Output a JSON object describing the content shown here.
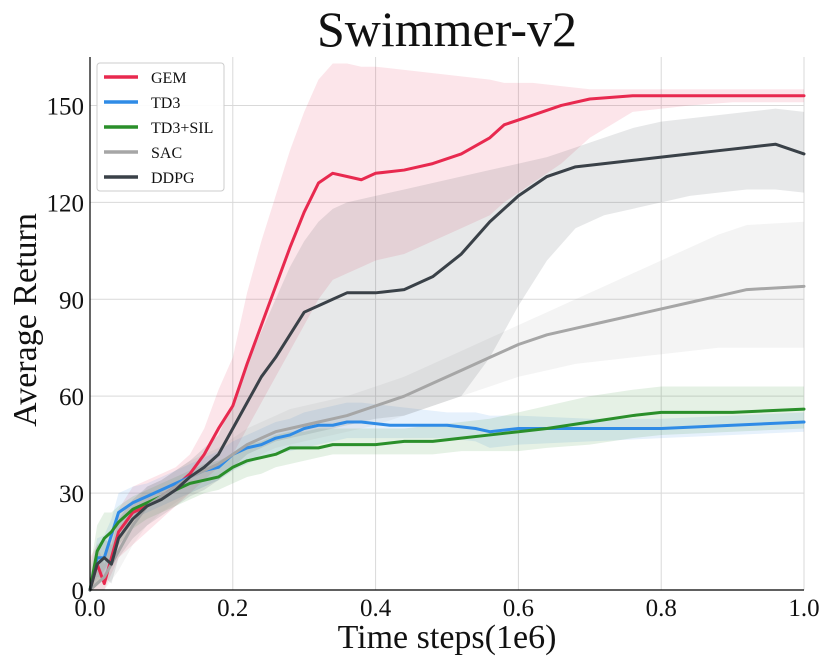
{
  "chart_data": {
    "type": "line",
    "title": "Swimmer-v2",
    "xlabel": "Time steps(1e6)",
    "ylabel": "Average Return",
    "xlim": [
      0,
      1.0
    ],
    "ylim": [
      0,
      165
    ],
    "xticks": [
      "0.0",
      "0.2",
      "0.4",
      "0.6",
      "0.8",
      "1.0"
    ],
    "xtick_values": [
      0,
      0.2,
      0.4,
      0.6,
      0.8,
      1.0
    ],
    "yticks": [
      "0",
      "30",
      "60",
      "90",
      "120",
      "150"
    ],
    "ytick_values": [
      0,
      30,
      60,
      90,
      120,
      150
    ],
    "grid": true,
    "legend_position": "top-left",
    "series": [
      {
        "name": "GEM",
        "color": "#e8294f",
        "x": [
          0,
          0.01,
          0.02,
          0.04,
          0.06,
          0.08,
          0.1,
          0.12,
          0.14,
          0.16,
          0.18,
          0.2,
          0.22,
          0.24,
          0.26,
          0.28,
          0.3,
          0.32,
          0.34,
          0.36,
          0.38,
          0.4,
          0.44,
          0.48,
          0.52,
          0.56,
          0.58,
          0.62,
          0.66,
          0.7,
          0.76,
          0.84,
          0.9,
          1.0
        ],
        "y": [
          0,
          8,
          2,
          18,
          24,
          26,
          29,
          32,
          36,
          42,
          50,
          57,
          70,
          82,
          94,
          106,
          117,
          126,
          129,
          128,
          127,
          129,
          130,
          132,
          135,
          140,
          144,
          147,
          150,
          152,
          153,
          153,
          153,
          153
        ],
        "band": [
          [
            0,
            10
          ],
          [
            0,
            14
          ],
          [
            0,
            8
          ],
          [
            10,
            25
          ],
          [
            14,
            32
          ],
          [
            18,
            34
          ],
          [
            22,
            36
          ],
          [
            26,
            38
          ],
          [
            30,
            42
          ],
          [
            34,
            50
          ],
          [
            38,
            62
          ],
          [
            42,
            72
          ],
          [
            50,
            92
          ],
          [
            58,
            108
          ],
          [
            66,
            122
          ],
          [
            74,
            136
          ],
          [
            82,
            148
          ],
          [
            90,
            158
          ],
          [
            96,
            163
          ],
          [
            98,
            163
          ],
          [
            100,
            162
          ],
          [
            102,
            162
          ],
          [
            104,
            161
          ],
          [
            108,
            160
          ],
          [
            112,
            159
          ],
          [
            116,
            158
          ],
          [
            120,
            157
          ],
          [
            126,
            157
          ],
          [
            132,
            156
          ],
          [
            140,
            155
          ],
          [
            148,
            155
          ],
          [
            150,
            155
          ],
          [
            151,
            155
          ],
          [
            151,
            155
          ]
        ]
      },
      {
        "name": "TD3",
        "color": "#2f8be6",
        "x": [
          0,
          0.01,
          0.02,
          0.03,
          0.04,
          0.06,
          0.08,
          0.1,
          0.12,
          0.14,
          0.16,
          0.18,
          0.2,
          0.22,
          0.24,
          0.26,
          0.28,
          0.3,
          0.32,
          0.34,
          0.36,
          0.38,
          0.42,
          0.46,
          0.5,
          0.54,
          0.56,
          0.6,
          0.7,
          0.8,
          0.9,
          1.0
        ],
        "y": [
          0,
          10,
          10,
          17,
          24,
          27,
          29,
          31,
          33,
          35,
          37,
          38,
          42,
          44,
          45,
          47,
          48,
          50,
          51,
          51,
          52,
          52,
          51,
          51,
          51,
          50,
          49,
          50,
          50,
          50,
          51,
          52
        ],
        "band": [
          [
            0,
            4
          ],
          [
            4,
            16
          ],
          [
            4,
            17
          ],
          [
            10,
            22
          ],
          [
            18,
            30
          ],
          [
            22,
            32
          ],
          [
            24,
            33
          ],
          [
            26,
            35
          ],
          [
            28,
            37
          ],
          [
            30,
            39
          ],
          [
            32,
            41
          ],
          [
            34,
            43
          ],
          [
            37,
            46
          ],
          [
            39,
            48
          ],
          [
            41,
            50
          ],
          [
            42,
            52
          ],
          [
            43,
            53
          ],
          [
            44,
            55
          ],
          [
            45,
            56
          ],
          [
            46,
            57
          ],
          [
            47,
            58
          ],
          [
            47,
            58
          ],
          [
            47,
            57
          ],
          [
            47,
            56
          ],
          [
            47,
            55
          ],
          [
            46,
            55
          ],
          [
            44,
            54
          ],
          [
            45,
            54
          ],
          [
            46,
            53
          ],
          [
            47,
            53
          ],
          [
            48,
            54
          ],
          [
            49,
            55
          ]
        ]
      },
      {
        "name": "TD3+SIL",
        "color": "#2a8f2a",
        "x": [
          0,
          0.01,
          0.02,
          0.03,
          0.04,
          0.06,
          0.08,
          0.1,
          0.12,
          0.14,
          0.16,
          0.18,
          0.2,
          0.22,
          0.24,
          0.26,
          0.28,
          0.3,
          0.32,
          0.34,
          0.36,
          0.4,
          0.44,
          0.48,
          0.52,
          0.56,
          0.6,
          0.64,
          0.7,
          0.76,
          0.8,
          0.9,
          1.0
        ],
        "y": [
          0,
          12,
          16,
          18,
          21,
          25,
          27,
          29,
          31,
          33,
          34,
          35,
          38,
          40,
          41,
          42,
          44,
          44,
          44,
          45,
          45,
          45,
          46,
          46,
          47,
          48,
          49,
          50,
          52,
          54,
          55,
          55,
          56
        ],
        "band": [
          [
            0,
            6
          ],
          [
            2,
            20
          ],
          [
            6,
            24
          ],
          [
            10,
            24
          ],
          [
            14,
            26
          ],
          [
            19,
            29
          ],
          [
            22,
            31
          ],
          [
            24,
            33
          ],
          [
            26,
            35
          ],
          [
            28,
            37
          ],
          [
            30,
            39
          ],
          [
            31,
            40
          ],
          [
            33,
            42
          ],
          [
            35,
            45
          ],
          [
            36,
            46
          ],
          [
            38,
            48
          ],
          [
            39,
            49
          ],
          [
            40,
            49
          ],
          [
            41,
            50
          ],
          [
            42,
            50
          ],
          [
            42,
            50
          ],
          [
            42,
            50
          ],
          [
            42,
            50
          ],
          [
            42,
            51
          ],
          [
            43,
            52
          ],
          [
            43,
            53
          ],
          [
            43,
            55
          ],
          [
            44,
            57
          ],
          [
            45,
            60
          ],
          [
            47,
            62
          ],
          [
            48,
            63
          ],
          [
            49,
            63
          ],
          [
            50,
            63
          ]
        ]
      },
      {
        "name": "SAC",
        "color": "#a6a6a6",
        "x": [
          0,
          0.02,
          0.04,
          0.06,
          0.08,
          0.1,
          0.12,
          0.14,
          0.16,
          0.18,
          0.2,
          0.22,
          0.24,
          0.26,
          0.28,
          0.3,
          0.32,
          0.34,
          0.36,
          0.4,
          0.44,
          0.48,
          0.52,
          0.56,
          0.6,
          0.64,
          0.68,
          0.72,
          0.76,
          0.8,
          0.84,
          0.88,
          0.92,
          1.0
        ],
        "y": [
          0,
          4,
          12,
          20,
          26,
          29,
          32,
          35,
          37,
          39,
          42,
          45,
          47,
          49,
          50,
          51,
          52,
          53,
          54,
          57,
          60,
          64,
          68,
          72,
          76,
          79,
          81,
          83,
          85,
          87,
          89,
          91,
          93,
          94
        ],
        "band": [
          [
            0,
            4
          ],
          [
            0,
            10
          ],
          [
            6,
            18
          ],
          [
            14,
            26
          ],
          [
            20,
            32
          ],
          [
            24,
            34
          ],
          [
            27,
            37
          ],
          [
            30,
            40
          ],
          [
            32,
            42
          ],
          [
            34,
            44
          ],
          [
            37,
            47
          ],
          [
            40,
            50
          ],
          [
            42,
            52
          ],
          [
            44,
            54
          ],
          [
            45,
            56
          ],
          [
            46,
            57
          ],
          [
            47,
            58
          ],
          [
            48,
            59
          ],
          [
            49,
            60
          ],
          [
            51,
            63
          ],
          [
            54,
            66
          ],
          [
            57,
            70
          ],
          [
            60,
            74
          ],
          [
            63,
            78
          ],
          [
            66,
            82
          ],
          [
            68,
            86
          ],
          [
            70,
            90
          ],
          [
            71,
            94
          ],
          [
            72,
            98
          ],
          [
            73,
            102
          ],
          [
            74,
            106
          ],
          [
            75,
            110
          ],
          [
            75,
            113
          ],
          [
            75,
            114
          ]
        ]
      },
      {
        "name": "DDPG",
        "color": "#3a4148",
        "x": [
          0,
          0.01,
          0.02,
          0.03,
          0.04,
          0.06,
          0.08,
          0.1,
          0.12,
          0.14,
          0.16,
          0.18,
          0.2,
          0.22,
          0.24,
          0.26,
          0.28,
          0.3,
          0.32,
          0.34,
          0.36,
          0.38,
          0.4,
          0.44,
          0.48,
          0.52,
          0.56,
          0.6,
          0.64,
          0.68,
          0.72,
          0.76,
          0.8,
          0.84,
          0.88,
          0.92,
          0.96,
          1.0
        ],
        "y": [
          0,
          8,
          10,
          8,
          16,
          22,
          26,
          28,
          31,
          35,
          38,
          42,
          50,
          58,
          66,
          72,
          79,
          86,
          88,
          90,
          92,
          92,
          92,
          93,
          97,
          104,
          114,
          122,
          128,
          131,
          132,
          133,
          134,
          135,
          136,
          137,
          138,
          135
        ],
        "band": [
          [
            0,
            3
          ],
          [
            2,
            14
          ],
          [
            4,
            16
          ],
          [
            2,
            14
          ],
          [
            10,
            22
          ],
          [
            16,
            28
          ],
          [
            20,
            32
          ],
          [
            23,
            34
          ],
          [
            26,
            37
          ],
          [
            29,
            40
          ],
          [
            31,
            44
          ],
          [
            34,
            48
          ],
          [
            38,
            58
          ],
          [
            42,
            70
          ],
          [
            44,
            80
          ],
          [
            46,
            90
          ],
          [
            47,
            100
          ],
          [
            48,
            108
          ],
          [
            49,
            114
          ],
          [
            50,
            118
          ],
          [
            51,
            120
          ],
          [
            52,
            121
          ],
          [
            53,
            122
          ],
          [
            54,
            124
          ],
          [
            57,
            126
          ],
          [
            60,
            128
          ],
          [
            72,
            130
          ],
          [
            88,
            132
          ],
          [
            102,
            134
          ],
          [
            112,
            137
          ],
          [
            116,
            140
          ],
          [
            118,
            143
          ],
          [
            120,
            145
          ],
          [
            122,
            146
          ],
          [
            123,
            147
          ],
          [
            124,
            148
          ],
          [
            124,
            149
          ],
          [
            123,
            148
          ]
        ]
      }
    ]
  }
}
